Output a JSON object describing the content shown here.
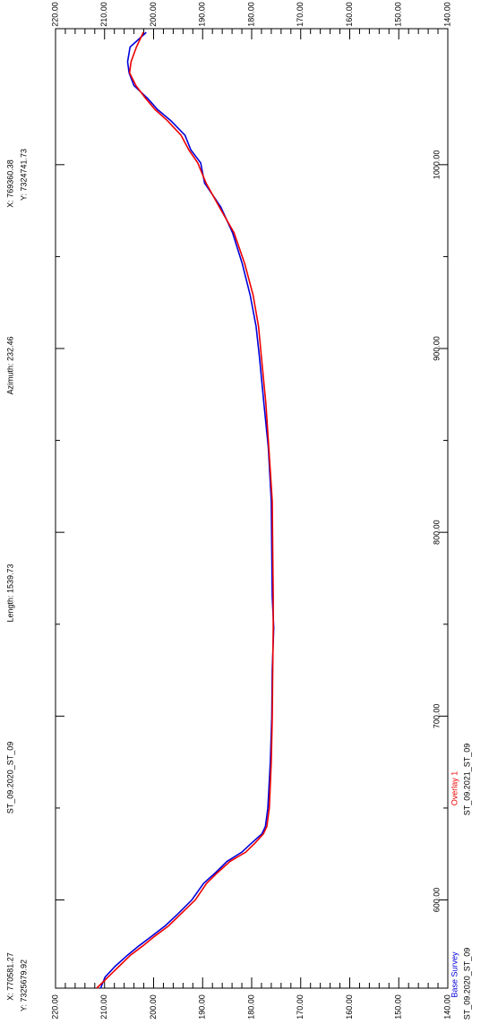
{
  "chart_data": {
    "type": "line",
    "annotations": [
      "X: 769360.38",
      "Y: 7324741.73",
      "Azimuth: 232.46",
      "Length: 1539.73",
      "ST_09.2020_ST_09",
      "X: 770581.27",
      "Y: 7325679.92"
    ],
    "x": [
      1072,
      1064,
      1056,
      1050,
      1043,
      1036,
      1030,
      1024,
      1016,
      1008,
      1001,
      990,
      977,
      963,
      946,
      929,
      912,
      895,
      870,
      846,
      817,
      790,
      765,
      748,
      725,
      699,
      675,
      650,
      640,
      636,
      631,
      626,
      621,
      615,
      609,
      600,
      592,
      586,
      580,
      575,
      570,
      564,
      558,
      552
    ],
    "series": [
      {
        "name": "ST_09.2020_ST_09",
        "label": "Base Survey",
        "color": "#0000dd",
        "values": [
          201.5,
          204.8,
          205.3,
          205.0,
          204.0,
          201.2,
          199.2,
          196.5,
          193.6,
          192.4,
          190.4,
          189.6,
          186.3,
          183.9,
          181.9,
          180.3,
          179.1,
          178.4,
          177.5,
          176.6,
          176.0,
          175.9,
          175.8,
          175.5,
          175.8,
          175.9,
          176.2,
          176.7,
          177.2,
          177.9,
          180.0,
          182.0,
          185.0,
          187.3,
          189.8,
          192.2,
          195.2,
          197.6,
          200.5,
          203.0,
          205.3,
          207.8,
          209.9,
          210.8
        ]
      },
      {
        "name": "ST_09.2021_ST_09",
        "label": "Overlay 1",
        "color": "#ee0000",
        "values": [
          202.1,
          203.5,
          204.6,
          204.9,
          203.6,
          201.6,
          199.7,
          197.2,
          194.4,
          192.8,
          191.0,
          189.3,
          186.6,
          183.6,
          181.4,
          179.7,
          178.6,
          178.0,
          177.1,
          176.5,
          175.8,
          175.7,
          175.6,
          175.6,
          175.7,
          175.8,
          176.0,
          176.4,
          176.9,
          177.6,
          179.3,
          181.2,
          184.4,
          186.9,
          189.2,
          191.5,
          194.6,
          196.9,
          199.9,
          202.2,
          204.7,
          207.0,
          209.3,
          211.6
        ]
      }
    ],
    "xlim": [
      552,
      1074
    ],
    "xticks": [
      {
        "value": 600,
        "label": "600.00"
      },
      {
        "value": 700,
        "label": "700.00"
      },
      {
        "value": 800,
        "label": "800.00"
      },
      {
        "value": 900,
        "label": "900.00"
      },
      {
        "value": 1000,
        "label": "1000.00"
      }
    ],
    "ylim": [
      220,
      140
    ],
    "yticks": [
      {
        "value": 220,
        "label": "220.00"
      },
      {
        "value": 210,
        "label": "210.00"
      },
      {
        "value": 200,
        "label": "200.00"
      },
      {
        "value": 190,
        "label": "190.00"
      },
      {
        "value": 180,
        "label": "180.00"
      },
      {
        "value": 170,
        "label": "170.00"
      },
      {
        "value": 160,
        "label": "160.00"
      },
      {
        "value": 150,
        "label": "150.00"
      },
      {
        "value": 140,
        "label": "140.00"
      }
    ]
  }
}
